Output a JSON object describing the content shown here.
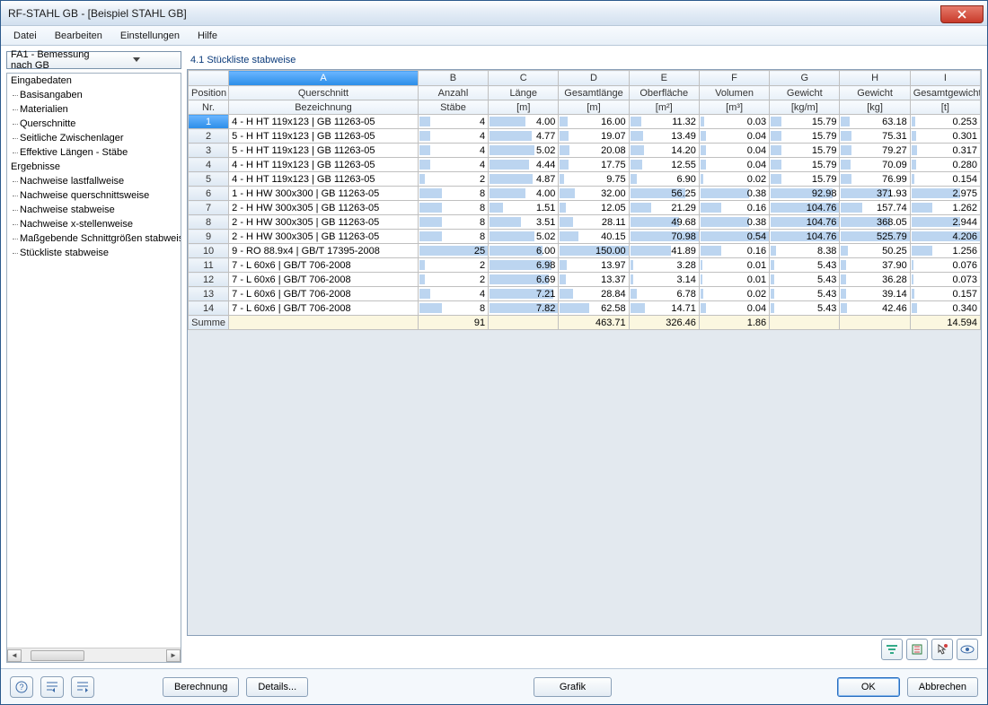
{
  "window": {
    "title": "RF-STAHL GB - [Beispiel STAHL GB]"
  },
  "menubar": [
    "Datei",
    "Bearbeiten",
    "Einstellungen",
    "Hilfe"
  ],
  "combo": {
    "value": "FA1 - Bemessung nach GB"
  },
  "tree": {
    "group1": "Eingabedaten",
    "items1": [
      "Basisangaben",
      "Materialien",
      "Querschnitte",
      "Seitliche Zwischenlager",
      "Effektive Längen - Stäbe"
    ],
    "group2": "Ergebnisse",
    "items2": [
      "Nachweise lastfallweise",
      "Nachweise querschnittsweise",
      "Nachweise stabweise",
      "Nachweise x-stellenweise",
      "Maßgebende Schnittgrößen stabweise",
      "Stückliste stabweise"
    ]
  },
  "panel": {
    "title": "4.1 Stückliste stabweise"
  },
  "table": {
    "letters": [
      "A",
      "B",
      "C",
      "D",
      "E",
      "F",
      "G",
      "H",
      "I"
    ],
    "header1": {
      "pos": "Position",
      "a": "Querschnitt",
      "b": "Anzahl",
      "c": "Länge",
      "d": "Gesamtlänge",
      "e": "Oberfläche",
      "f": "Volumen",
      "g": "Gewicht",
      "h": "Gewicht",
      "i": "Gesamtgewicht"
    },
    "header2": {
      "pos": "Nr.",
      "a": "Bezeichnung",
      "b": "Stäbe",
      "c": "[m]",
      "d": "[m]",
      "e": "[m²]",
      "f": "[m³]",
      "g": "[kg/m]",
      "h": "[kg]",
      "i": "[t]"
    },
    "rows": [
      {
        "n": "1",
        "a": "4 - H HT 119x123 | GB 11263-05",
        "b": "4",
        "c": "4.00",
        "d": "16.00",
        "e": "11.32",
        "f": "0.03",
        "g": "15.79",
        "h": "63.18",
        "i": "0.253",
        "sel": true
      },
      {
        "n": "2",
        "a": "5 - H HT 119x123 | GB 11263-05",
        "b": "4",
        "c": "4.77",
        "d": "19.07",
        "e": "13.49",
        "f": "0.04",
        "g": "15.79",
        "h": "75.31",
        "i": "0.301"
      },
      {
        "n": "3",
        "a": "5 - H HT 119x123 | GB 11263-05",
        "b": "4",
        "c": "5.02",
        "d": "20.08",
        "e": "14.20",
        "f": "0.04",
        "g": "15.79",
        "h": "79.27",
        "i": "0.317"
      },
      {
        "n": "4",
        "a": "4 - H HT 119x123 | GB 11263-05",
        "b": "4",
        "c": "4.44",
        "d": "17.75",
        "e": "12.55",
        "f": "0.04",
        "g": "15.79",
        "h": "70.09",
        "i": "0.280"
      },
      {
        "n": "5",
        "a": "4 - H HT 119x123 | GB 11263-05",
        "b": "2",
        "c": "4.87",
        "d": "9.75",
        "e": "6.90",
        "f": "0.02",
        "g": "15.79",
        "h": "76.99",
        "i": "0.154"
      },
      {
        "n": "6",
        "a": "1 - H HW 300x300 | GB 11263-05",
        "b": "8",
        "c": "4.00",
        "d": "32.00",
        "e": "56.25",
        "f": "0.38",
        "g": "92.98",
        "h": "371.93",
        "i": "2.975"
      },
      {
        "n": "7",
        "a": "2 - H HW 300x305 | GB 11263-05",
        "b": "8",
        "c": "1.51",
        "d": "12.05",
        "e": "21.29",
        "f": "0.16",
        "g": "104.76",
        "h": "157.74",
        "i": "1.262"
      },
      {
        "n": "8",
        "a": "2 - H HW 300x305 | GB 11263-05",
        "b": "8",
        "c": "3.51",
        "d": "28.11",
        "e": "49.68",
        "f": "0.38",
        "g": "104.76",
        "h": "368.05",
        "i": "2.944"
      },
      {
        "n": "9",
        "a": "2 - H HW 300x305 | GB 11263-05",
        "b": "8",
        "c": "5.02",
        "d": "40.15",
        "e": "70.98",
        "f": "0.54",
        "g": "104.76",
        "h": "525.79",
        "i": "4.206"
      },
      {
        "n": "10",
        "a": "9 - RO 88.9x4 | GB/T 17395-2008",
        "b": "25",
        "c": "6.00",
        "d": "150.00",
        "e": "41.89",
        "f": "0.16",
        "g": "8.38",
        "h": "50.25",
        "i": "1.256"
      },
      {
        "n": "11",
        "a": "7 - L 60x6 | GB/T 706-2008",
        "b": "2",
        "c": "6.98",
        "d": "13.97",
        "e": "3.28",
        "f": "0.01",
        "g": "5.43",
        "h": "37.90",
        "i": "0.076"
      },
      {
        "n": "12",
        "a": "7 - L 60x6 | GB/T 706-2008",
        "b": "2",
        "c": "6.69",
        "d": "13.37",
        "e": "3.14",
        "f": "0.01",
        "g": "5.43",
        "h": "36.28",
        "i": "0.073"
      },
      {
        "n": "13",
        "a": "7 - L 60x6 | GB/T 706-2008",
        "b": "4",
        "c": "7.21",
        "d": "28.84",
        "e": "6.78",
        "f": "0.02",
        "g": "5.43",
        "h": "39.14",
        "i": "0.157"
      },
      {
        "n": "14",
        "a": "7 - L 60x6 | GB/T 706-2008",
        "b": "8",
        "c": "7.82",
        "d": "62.58",
        "e": "14.71",
        "f": "0.04",
        "g": "5.43",
        "h": "42.46",
        "i": "0.340"
      }
    ],
    "sum": {
      "label": "Summe",
      "b": "91",
      "d": "463.71",
      "e": "326.46",
      "f": "1.86",
      "i": "14.594"
    },
    "maxes": {
      "b": 25,
      "c": 7.82,
      "d": 150.0,
      "e": 70.98,
      "f": 0.54,
      "g": 104.76,
      "h": 525.79,
      "i": 4.206
    },
    "bar_color": "#bcd5f0"
  },
  "footer": {
    "berechnung": "Berechnung",
    "details": "Details...",
    "grafik": "Grafik",
    "ok": "OK",
    "abbrechen": "Abbrechen"
  }
}
